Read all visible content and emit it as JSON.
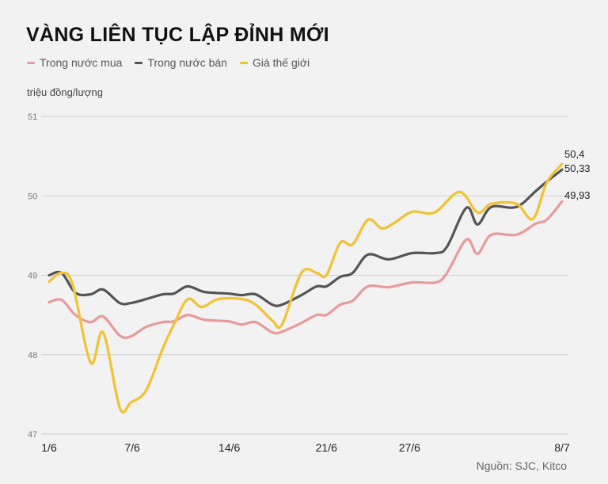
{
  "colors": {
    "buy": "#e99a9c",
    "sell": "#555555",
    "world": "#f1c232",
    "grid": "#cfcfcf"
  },
  "chart_data": {
    "type": "line",
    "title": "VÀNG LIÊN TỤC LẬP ĐỈNH MỚI",
    "ylabel": "triệu đồng/lượng",
    "source": "Nguồn: SJC, Kitco",
    "ylim": [
      47,
      51
    ],
    "yticks": [
      "51",
      "50",
      "49",
      "48",
      "47"
    ],
    "ytick_values": [
      51,
      50,
      49,
      48,
      47
    ],
    "xlim": [
      0,
      37
    ],
    "xticks": [
      {
        "label": "1/6",
        "x": 0
      },
      {
        "label": "7/6",
        "x": 6
      },
      {
        "label": "14/6",
        "x": 13
      },
      {
        "label": "21/6",
        "x": 20
      },
      {
        "label": "27/6",
        "x": 26
      },
      {
        "label": "8/7",
        "x": 37
      }
    ],
    "grid": true,
    "legend_position": "top-left",
    "series": [
      {
        "key": "buy",
        "name": "Trong nước mua",
        "end_label": "49,93",
        "x": [
          0,
          0.9,
          1.9,
          3,
          3.9,
          5.1,
          5.9,
          7,
          8.2,
          9,
          10,
          11.2,
          12.9,
          13.9,
          14.9,
          16.1,
          16.8,
          18.2,
          19.3,
          20,
          21,
          21.9,
          23,
          24.5,
          26.2,
          27.9,
          28.7,
          30.1,
          30.9,
          31.9,
          33.7,
          35.1,
          35.9,
          37
        ],
        "values": [
          48.66,
          48.69,
          48.5,
          48.41,
          48.48,
          48.24,
          48.23,
          48.35,
          48.41,
          48.42,
          48.5,
          48.44,
          48.42,
          48.38,
          48.41,
          48.28,
          48.29,
          48.4,
          48.5,
          48.5,
          48.63,
          48.68,
          48.86,
          48.85,
          48.91,
          48.91,
          49.03,
          49.45,
          49.27,
          49.51,
          49.51,
          49.65,
          49.7,
          49.93
        ]
      },
      {
        "key": "sell",
        "name": "Trong nước bán",
        "end_label": "50,33",
        "x": [
          0,
          0.9,
          1.9,
          3,
          3.9,
          5.1,
          5.9,
          7,
          8.2,
          9,
          10,
          11.2,
          12.9,
          13.9,
          14.9,
          16.1,
          16.8,
          18.2,
          19.3,
          20,
          21,
          21.9,
          23,
          24.5,
          26.2,
          27.9,
          28.7,
          30.1,
          30.9,
          31.9,
          33.7,
          35.1,
          35.9,
          37
        ],
        "values": [
          49.0,
          49.03,
          48.78,
          48.76,
          48.82,
          48.65,
          48.65,
          48.7,
          48.76,
          48.77,
          48.86,
          48.79,
          48.77,
          48.75,
          48.76,
          48.63,
          48.63,
          48.75,
          48.86,
          48.86,
          48.98,
          49.03,
          49.26,
          49.2,
          49.28,
          49.28,
          49.36,
          49.85,
          49.64,
          49.86,
          49.86,
          50.06,
          50.18,
          50.33
        ]
      },
      {
        "key": "world",
        "name": "Giá thế giới",
        "end_label": "50,4",
        "x": [
          0,
          0.9,
          1.7,
          3,
          3.9,
          5.1,
          5.9,
          7,
          8.2,
          9,
          10,
          11,
          12.2,
          13.9,
          14.9,
          16.1,
          16.8,
          18.2,
          19.3,
          20,
          21,
          21.9,
          23,
          24,
          24.9,
          26.2,
          27.8,
          29.6,
          30.9,
          31.9,
          33.7,
          34.9,
          35.9,
          37
        ],
        "values": [
          48.92,
          49.03,
          48.88,
          47.9,
          48.28,
          47.33,
          47.4,
          47.55,
          48.08,
          48.38,
          48.7,
          48.6,
          48.7,
          48.7,
          48.63,
          48.43,
          48.38,
          49.03,
          49.03,
          49.0,
          49.41,
          49.39,
          49.7,
          49.59,
          49.66,
          49.8,
          49.79,
          50.05,
          49.79,
          49.9,
          49.9,
          49.71,
          50.17,
          50.4
        ]
      }
    ]
  }
}
